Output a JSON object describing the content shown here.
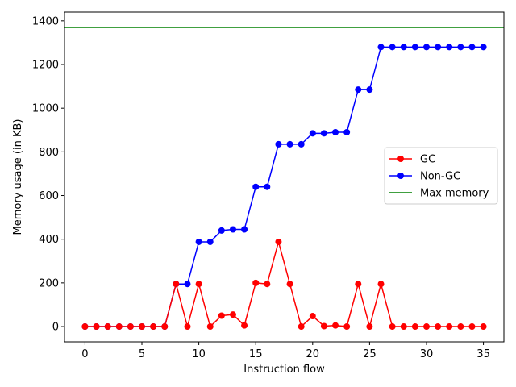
{
  "chart_data": {
    "type": "line",
    "title": "",
    "xlabel": "Instruction flow",
    "ylabel": "Memory usage (in KB)",
    "xlim": [
      -1.8,
      36.8
    ],
    "ylim": [
      -70,
      1440
    ],
    "xticks": [
      0,
      5,
      10,
      15,
      20,
      25,
      30,
      35
    ],
    "yticks": [
      0,
      200,
      400,
      600,
      800,
      1000,
      1200,
      1400
    ],
    "grid": false,
    "legend_position": "center-right",
    "x": [
      0,
      1,
      2,
      3,
      4,
      5,
      6,
      7,
      8,
      9,
      10,
      11,
      12,
      13,
      14,
      15,
      16,
      17,
      18,
      19,
      20,
      21,
      22,
      23,
      24,
      25,
      26,
      27,
      28,
      29,
      30,
      31,
      32,
      33,
      34,
      35
    ],
    "series": [
      {
        "name": "GC",
        "color": "#ff0000",
        "marker": "circle",
        "values": [
          0,
          0,
          0,
          0,
          0,
          0,
          0,
          0,
          195,
          0,
          195,
          0,
          50,
          55,
          5,
          200,
          195,
          388,
          195,
          0,
          48,
          2,
          5,
          0,
          195,
          0,
          195,
          0,
          0,
          0,
          0,
          0,
          0,
          0,
          0,
          0
        ]
      },
      {
        "name": "Non-GC",
        "color": "#0000ff",
        "marker": "circle",
        "values": [
          0,
          0,
          0,
          0,
          0,
          0,
          0,
          0,
          195,
          195,
          388,
          388,
          440,
          445,
          445,
          640,
          640,
          835,
          835,
          835,
          885,
          885,
          890,
          890,
          1085,
          1085,
          1280,
          1280,
          1280,
          1280,
          1280,
          1280,
          1280,
          1280,
          1280,
          1280
        ]
      },
      {
        "name": "Max memory",
        "color": "#008000",
        "marker": "none",
        "hline": 1370
      }
    ]
  }
}
